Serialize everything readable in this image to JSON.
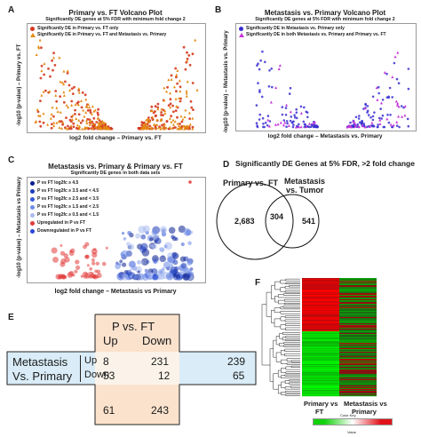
{
  "panels": {
    "A": {
      "letter": "A",
      "title": "Primary vs. FT Volcano Plot",
      "subtitle": "Significantly DE genes at 5% FDR with minimum fold change 2",
      "legend": [
        {
          "label": "Significantly DE in Primary vs. FT only",
          "color": "#d43a1f",
          "shape": "circle"
        },
        {
          "label": "Significantly DE in Primary vs. FT and Metastasis vs. Primary",
          "color": "#e58a14",
          "shape": "triangle"
        }
      ],
      "xlabel": "log2 fold change – Primary vs. FT",
      "ylabel": "-log10 (p-value) – Primary vs. FT"
    },
    "B": {
      "letter": "B",
      "title": "Metastasis vs. Primary Volcano Plot",
      "subtitle": "Significantly DE genes at 5% FDR with minimum fold change 2",
      "legend": [
        {
          "label": "Significantly DE in Metastasis vs. Primary only",
          "color": "#3a2fd0",
          "shape": "circle"
        },
        {
          "label": "Significantly DE in both Metastasis vs. Primary and Primary vs. FT",
          "color": "#c535d8",
          "shape": "triangle"
        }
      ],
      "xlabel": "log2 fold change – Metastasis vs. Primary",
      "ylabel": "-log10 (p-value) – Metastasis vs. Primary"
    },
    "C": {
      "letter": "C",
      "title": "Metastasis vs. Primary & Primary vs. FT",
      "subtitle": "Significantly DE genes in both data sets",
      "legend": [
        {
          "label": "P vs FT log2fc ≥ 4.5",
          "color": "#0a1f8f"
        },
        {
          "label": "P vs FT log2fc ≥ 3.5 and < 4.5",
          "color": "#1b3bb8"
        },
        {
          "label": "P vs FT log2fc ≥ 2.5 and < 3.5",
          "color": "#3558d8"
        },
        {
          "label": "P vs FT log2fc ≥ 1.5 and < 2.5",
          "color": "#6f8de6"
        },
        {
          "label": "P vs FT log2fc ≥ 0.5 and < 1.5",
          "color": "#a9bbf0"
        },
        {
          "label": "Upregulated in P vs FT",
          "color": "#e23b3b"
        },
        {
          "label": "Downregulated in P vs FT",
          "color": "#2946d8"
        }
      ],
      "xlabel": "log2 fold change – Metastasis vs Primary",
      "ylabel": "-log10 (p-value) – Metastasis vs Primary"
    },
    "D": {
      "letter": "D",
      "title": "Significantly DE Genes at 5% FDR, >2 fold change",
      "left_label": "Primary vs. FT",
      "right_label_1": "Metastasis",
      "right_label_2": "vs. Tumor",
      "left_only": "2,683",
      "overlap": "304",
      "right_only": "541"
    },
    "E": {
      "letter": "E",
      "col_header": "P vs. FT",
      "col_up": "Up",
      "col_down": "Down",
      "row_header_1": "Metastasis",
      "row_header_2": "Vs. Primary",
      "row_up": "Up",
      "row_down": "Down",
      "cells": {
        "up_up": "8",
        "up_down": "231",
        "down_up": "53",
        "down_down": "12"
      },
      "row_totals": {
        "up": "239",
        "down": "65"
      },
      "col_totals": {
        "up": "61",
        "down": "243"
      }
    },
    "F": {
      "letter": "F",
      "col_label_1a": "Primary vs",
      "col_label_1b": "FT",
      "col_label_2a": "Metastasis vs",
      "col_label_2b": "Primary",
      "color_key_title": "Color Key",
      "color_key_axis": "Value"
    }
  },
  "colors": {
    "red_point": "#d43a1f",
    "orange_point": "#e58a14",
    "blue_point": "#3a2fd0",
    "magenta_point": "#c535d8",
    "table_orange": "#fbe2cd",
    "table_blue": "#d9ecf7",
    "heat_red": "#e0121a",
    "heat_green": "#13d10c"
  }
}
